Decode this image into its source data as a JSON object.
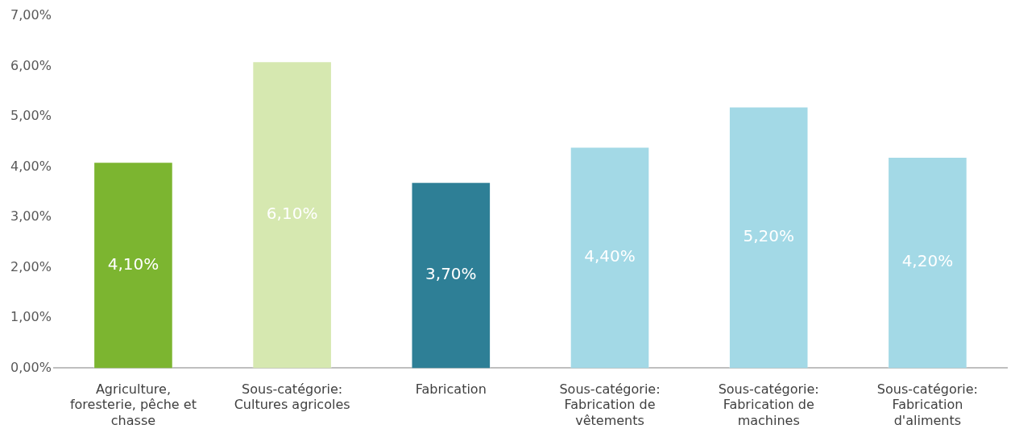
{
  "chart_data": {
    "type": "bar",
    "categories": [
      "Agriculture, foresterie, pêche et chasse",
      "Sous-catégorie: Cultures agricoles",
      "Fabrication",
      "Sous-catégorie: Fabrication de vêtements",
      "Sous-catégorie: Fabrication de machines",
      "Sous-catégorie: Fabrication d'aliments"
    ],
    "values": [
      4.1,
      6.1,
      3.7,
      4.4,
      5.2,
      4.2
    ],
    "colors": [
      "#7cb530",
      "#d6e8b0",
      "#2e7f96",
      "#a3d9e6",
      "#a3d9e6",
      "#a3d9e6"
    ],
    "value_labels": [
      "4,10%",
      "6,10%",
      "3,70%",
      "4,40%",
      "5,20%",
      "4,20%"
    ],
    "ylim": [
      0,
      7
    ],
    "yticks": [
      {
        "value": 0,
        "label": "0,00%"
      },
      {
        "value": 1,
        "label": "1,00%"
      },
      {
        "value": 2,
        "label": "2,00%"
      },
      {
        "value": 3,
        "label": "3,00%"
      },
      {
        "value": 4,
        "label": "4,00%"
      },
      {
        "value": 5,
        "label": "5,00%"
      },
      {
        "value": 6,
        "label": "6,00%"
      },
      {
        "value": 7,
        "label": "7,00%"
      }
    ],
    "grid": false,
    "legend": false
  }
}
